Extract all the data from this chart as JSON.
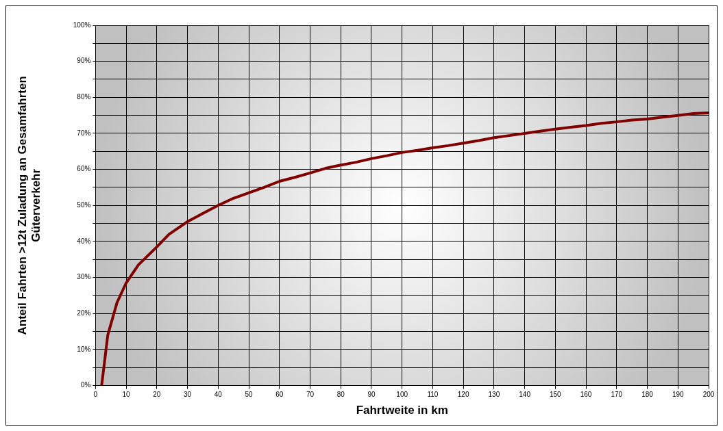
{
  "chart_data": {
    "type": "line",
    "xlabel": "Fahrtweite in km",
    "ylabel": "Anteil Fahrten >12t Zuladung an Gesamfahrten\nGüterverkehr",
    "x": [
      2,
      4,
      7,
      10,
      14,
      20,
      24,
      30,
      35,
      40,
      45,
      50,
      55,
      60,
      65,
      70,
      75,
      80,
      85,
      90,
      95,
      100,
      105,
      110,
      115,
      120,
      125,
      130,
      135,
      140,
      145,
      150,
      155,
      160,
      165,
      170,
      175,
      180,
      185,
      190,
      195,
      200
    ],
    "series": [
      {
        "color": "#800000",
        "values": [
          0,
          14,
          23,
          28.5,
          33.5,
          38.5,
          42,
          45.5,
          47.8,
          50,
          52,
          53.5,
          55,
          56.7,
          57.8,
          59,
          60.3,
          61.2,
          62,
          63,
          63.8,
          64.7,
          65.3,
          66,
          66.6,
          67.3,
          68,
          68.8,
          69.4,
          70,
          70.6,
          71.2,
          71.7,
          72.2,
          72.8,
          73.2,
          73.7,
          74,
          74.5,
          75,
          75.5,
          75.7
        ]
      }
    ],
    "xlim": [
      0,
      200
    ],
    "xticks": [
      0,
      10,
      20,
      30,
      40,
      50,
      60,
      70,
      80,
      90,
      100,
      110,
      120,
      130,
      140,
      150,
      160,
      170,
      180,
      190,
      200
    ],
    "ylim": [
      0,
      100
    ],
    "yticks": [
      {
        "value": 0,
        "label": "0%"
      },
      {
        "value": 5,
        "label": null
      },
      {
        "value": 10,
        "label": "10%"
      },
      {
        "value": 15,
        "label": null
      },
      {
        "value": 20,
        "label": "20%"
      },
      {
        "value": 25,
        "label": null
      },
      {
        "value": 30,
        "label": "30%"
      },
      {
        "value": 35,
        "label": null
      },
      {
        "value": 40,
        "label": "40%"
      },
      {
        "value": 45,
        "label": null
      },
      {
        "value": 50,
        "label": "50%"
      },
      {
        "value": 55,
        "label": null
      },
      {
        "value": 60,
        "label": "60%"
      },
      {
        "value": 65,
        "label": null
      },
      {
        "value": 70,
        "label": "70%"
      },
      {
        "value": 75,
        "label": null
      },
      {
        "value": 80,
        "label": "80%"
      },
      {
        "value": 85,
        "label": null
      },
      {
        "value": 90,
        "label": "90%"
      },
      {
        "value": 95,
        "label": null
      },
      {
        "value": 100,
        "label": "100%"
      }
    ],
    "grid": true,
    "legend": false,
    "marker": "none",
    "line_style": "solid"
  }
}
